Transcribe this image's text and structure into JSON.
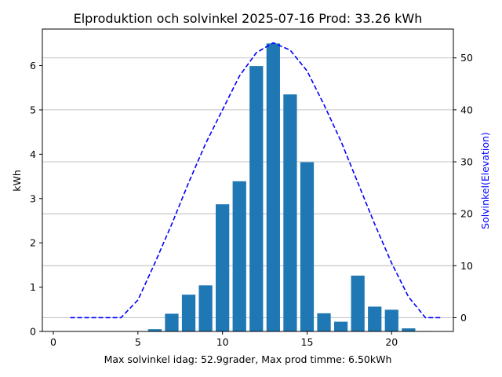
{
  "chart_data": {
    "type": "bar",
    "title": "Elproduktion och solvinkel 2025-07-16 Prod: 33.26 kWh",
    "xlabel": "Max solvinkel idag: 52.9grader, Max prod timme: 6.50kWh",
    "ylabel": "kWh",
    "y2label": "Solvinkel(Elevation)",
    "xlim": [
      -0.65,
      23.65
    ],
    "ylim": [
      0,
      6.825
    ],
    "y2lim": [
      -2.65,
      55.55
    ],
    "xticks": [
      0,
      5,
      10,
      15,
      20
    ],
    "yticks": [
      0,
      1,
      2,
      3,
      4,
      5,
      6
    ],
    "y2ticks": [
      0,
      10,
      20,
      30,
      40,
      50
    ],
    "grid": "horizontal lines at right-axis ticks",
    "colors": {
      "bars": "#1f77b4",
      "line": "#0000ff",
      "y2label": "#0000ff"
    },
    "series": [
      {
        "type": "bar",
        "axis": "left",
        "x": [
          0,
          1,
          2,
          3,
          4,
          5,
          6,
          7,
          8,
          9,
          10,
          11,
          12,
          13,
          14,
          15,
          16,
          17,
          18,
          19,
          20,
          21,
          22,
          23
        ],
        "values": [
          0,
          0,
          0,
          0,
          0,
          0,
          0.05,
          0.4,
          0.83,
          1.04,
          2.87,
          3.39,
          5.99,
          6.5,
          5.35,
          3.82,
          0.41,
          0.22,
          1.26,
          0.56,
          0.49,
          0.07,
          0.01,
          0
        ]
      },
      {
        "type": "line",
        "style": "dashed",
        "axis": "right",
        "x": [
          1,
          2,
          3,
          4,
          5,
          6,
          7,
          8,
          9,
          10,
          11,
          12,
          13,
          14,
          15,
          16,
          17,
          18,
          19,
          20,
          21,
          22,
          23
        ],
        "values": [
          0,
          0,
          0,
          0,
          3.4,
          10.5,
          18,
          26,
          33.5,
          40,
          46.5,
          51,
          52.9,
          51.5,
          47.5,
          41,
          34,
          26,
          18,
          10.5,
          4,
          0,
          0
        ]
      }
    ]
  }
}
